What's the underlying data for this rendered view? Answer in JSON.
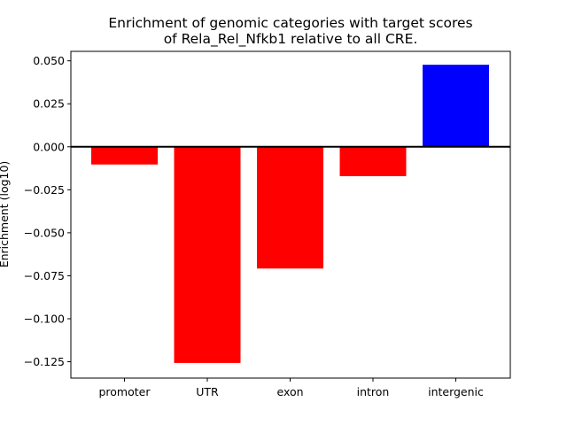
{
  "chart_data": {
    "type": "bar",
    "title": "Enrichment of genomic categories with target scores\nof Rela_Rel_Nfkb1 relative to all CRE.",
    "xlabel": "",
    "ylabel": "Enrichment (log10)",
    "categories": [
      "promoter",
      "UTR",
      "exon",
      "intron",
      "intergenic"
    ],
    "values": [
      -0.0103,
      -0.1257,
      -0.0708,
      -0.0171,
      0.0477
    ],
    "colors": [
      "#ff0000",
      "#ff0000",
      "#ff0000",
      "#ff0000",
      "#0000ff"
    ],
    "ylim": [
      -0.1345,
      0.0555
    ],
    "yticks": [
      0.05,
      0.025,
      0.0,
      -0.025,
      -0.05,
      -0.075,
      -0.1,
      -0.125
    ],
    "ytick_labels": [
      "0.050",
      "0.025",
      "0.000",
      "−0.025",
      "−0.050",
      "−0.075",
      "−0.100",
      "−0.125"
    ],
    "grid": false,
    "zero_line": true
  }
}
